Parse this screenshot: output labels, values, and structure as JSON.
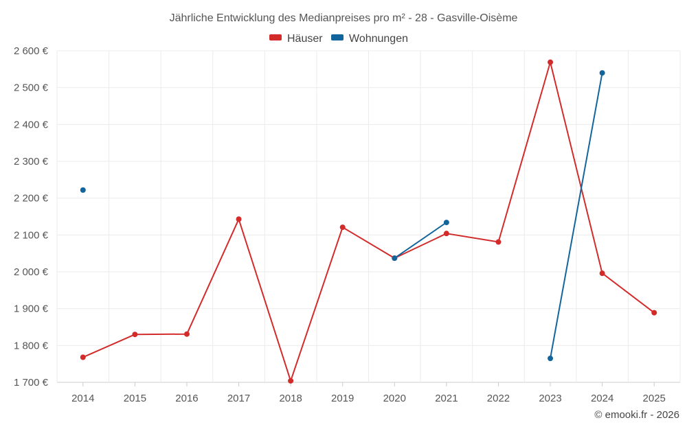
{
  "chart_data": {
    "type": "line",
    "title": "Jährliche Entwicklung des Medianpreises pro m² - 28 - Gasville-Oisème",
    "categories": [
      "2014",
      "2015",
      "2016",
      "2017",
      "2018",
      "2019",
      "2020",
      "2021",
      "2022",
      "2023",
      "2024",
      "2025"
    ],
    "ylim": [
      1700,
      2600
    ],
    "yticks": [
      1700,
      1800,
      1900,
      2000,
      2100,
      2200,
      2300,
      2400,
      2500,
      2600
    ],
    "ytick_labels": [
      "1 700 €",
      "1 800 €",
      "1 900 €",
      "2 000 €",
      "2 100 €",
      "2 200 €",
      "2 300 €",
      "2 400 €",
      "2 500 €",
      "2 600 €"
    ],
    "legend_position": "top-center",
    "grid": true,
    "series": [
      {
        "name": "Häuser",
        "color": "#d32a2a",
        "values": [
          1768,
          1830,
          1831,
          2143,
          1704,
          2121,
          2037,
          2104,
          2081,
          2569,
          1996,
          1889
        ]
      },
      {
        "name": "Wohnungen",
        "color": "#12659c",
        "values": [
          2222,
          null,
          null,
          null,
          null,
          null,
          2037,
          2134,
          null,
          1765,
          2540,
          null
        ]
      }
    ]
  },
  "credit": "© emooki.fr - 2026"
}
